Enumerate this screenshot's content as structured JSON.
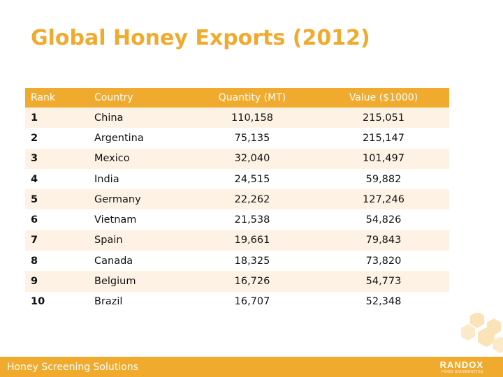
{
  "slide": {
    "title": "Global Honey Exports (2012)"
  },
  "table": {
    "headers": {
      "rank": "Rank",
      "country": "Country",
      "quantity": "Quantity (MT)",
      "value": "Value ($1000)"
    },
    "rows": [
      {
        "rank": "1",
        "country": "China",
        "quantity": "110,158",
        "value": "215,051"
      },
      {
        "rank": "2",
        "country": "Argentina",
        "quantity": "75,135",
        "value": "215,147"
      },
      {
        "rank": "3",
        "country": "Mexico",
        "quantity": "32,040",
        "value": "101,497"
      },
      {
        "rank": "4",
        "country": "India",
        "quantity": "24,515",
        "value": "59,882"
      },
      {
        "rank": "5",
        "country": "Germany",
        "quantity": "22,262",
        "value": "127,246"
      },
      {
        "rank": "6",
        "country": "Vietnam",
        "quantity": "21,538",
        "value": "54,826"
      },
      {
        "rank": "7",
        "country": "Spain",
        "quantity": "19,661",
        "value": "79,843"
      },
      {
        "rank": "8",
        "country": "Canada",
        "quantity": "18,325",
        "value": "73,820"
      },
      {
        "rank": "9",
        "country": "Belgium",
        "quantity": "16,726",
        "value": "54,773"
      },
      {
        "rank": "10",
        "country": "Brazil",
        "quantity": "16,707",
        "value": "52,348"
      }
    ]
  },
  "footer": {
    "text": "Honey Screening Solutions",
    "logo_main": "RANDOX",
    "logo_sub": "FOOD DIAGNOSTICS"
  },
  "colors": {
    "accent": "#f0ab2e",
    "row_tint": "#fdf2e4",
    "hexagon_tint": "#fbe3b8"
  },
  "icons": {
    "decoration": "honeycomb-hexagons-icon",
    "logo": "randox-logo"
  }
}
